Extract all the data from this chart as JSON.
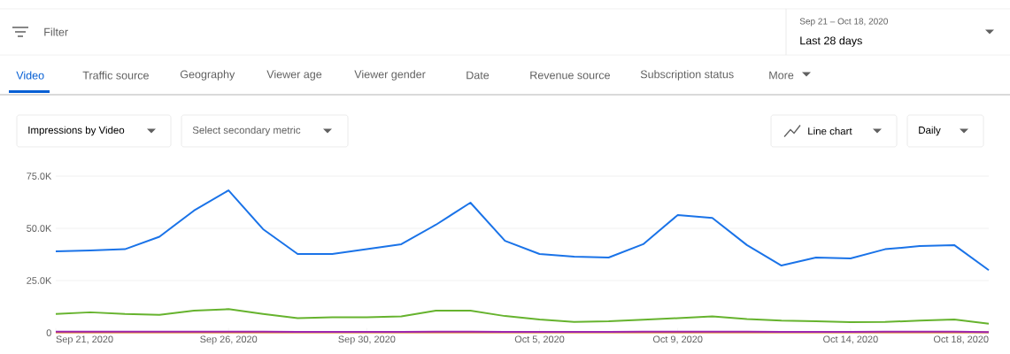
{
  "chart_data": {
    "type": "line",
    "x": [
      "2020-09-21",
      "2020-09-22",
      "2020-09-23",
      "2020-09-24",
      "2020-09-25",
      "2020-09-26",
      "2020-09-27",
      "2020-09-28",
      "2020-09-29",
      "2020-09-30",
      "2020-10-01",
      "2020-10-02",
      "2020-10-03",
      "2020-10-04",
      "2020-10-05",
      "2020-10-06",
      "2020-10-07",
      "2020-10-08",
      "2020-10-09",
      "2020-10-10",
      "2020-10-11",
      "2020-10-12",
      "2020-10-13",
      "2020-10-14",
      "2020-10-15",
      "2020-10-16",
      "2020-10-17",
      "2020-10-18"
    ],
    "series": [
      {
        "color": "#1a73e8",
        "values": [
          39000,
          39400,
          40000,
          46000,
          58500,
          68200,
          49600,
          37700,
          37700,
          40000,
          42400,
          51700,
          62300,
          44000,
          37700,
          36400,
          36000,
          42400,
          56400,
          55000,
          42000,
          32200,
          36000,
          35600,
          40000,
          41500,
          42000,
          30000
        ]
      },
      {
        "color": "#66b32e",
        "values": [
          9000,
          9800,
          9000,
          8600,
          10600,
          11300,
          9000,
          7000,
          7400,
          7400,
          7800,
          10600,
          10600,
          8000,
          6400,
          5200,
          5500,
          6300,
          7000,
          7800,
          6600,
          5800,
          5500,
          5100,
          5200,
          5800,
          6400,
          4300
        ]
      },
      {
        "color": "#e8710a",
        "values": [
          200,
          200,
          200,
          200,
          200,
          200,
          200,
          200,
          200,
          200,
          200,
          200,
          200,
          200,
          200,
          200,
          200,
          200,
          200,
          200,
          200,
          200,
          200,
          200,
          200,
          200,
          200,
          200
        ]
      },
      {
        "color": "#9c27b0",
        "values": [
          500,
          500,
          500,
          500,
          500,
          500,
          500,
          400,
          400,
          400,
          400,
          500,
          500,
          400,
          400,
          400,
          400,
          500,
          500,
          500,
          500,
          400,
          400,
          400,
          500,
          500,
          500,
          300
        ]
      }
    ],
    "xlim": [
      "2020-09-21",
      "2020-10-18"
    ],
    "xticks": [
      {
        "value": "2020-09-21",
        "label": "Sep 21, 2020"
      },
      {
        "value": "2020-09-26",
        "label": "Sep 26, 2020"
      },
      {
        "value": "2020-09-30",
        "label": "Sep 30, 2020"
      },
      {
        "value": "2020-10-05",
        "label": "Oct 5, 2020"
      },
      {
        "value": "2020-10-09",
        "label": "Oct 9, 2020"
      },
      {
        "value": "2020-10-14",
        "label": "Oct 14, 2020"
      },
      {
        "value": "2020-10-18",
        "label": "Oct 18, 2020"
      }
    ],
    "ylim": [
      0,
      75000
    ],
    "yticks": [
      0,
      {
        "value": 25000,
        "label": "25.0K"
      },
      {
        "value": 50000,
        "label": "50.0K"
      },
      {
        "value": 75000,
        "label": "75.0K"
      }
    ],
    "grid": "y",
    "legend": false,
    "marker": "none",
    "line_style": "solid",
    "annotations": [
      "Filter",
      "Sep 21 – Oct 18, 2020",
      "Last 28 days",
      "Video",
      "Traffic source",
      "Geography",
      "Viewer age",
      "Viewer gender",
      "Date",
      "Revenue source",
      "Subscription status",
      "More",
      "Impressions by Video",
      "Select secondary metric",
      "Line chart",
      "Daily"
    ]
  }
}
